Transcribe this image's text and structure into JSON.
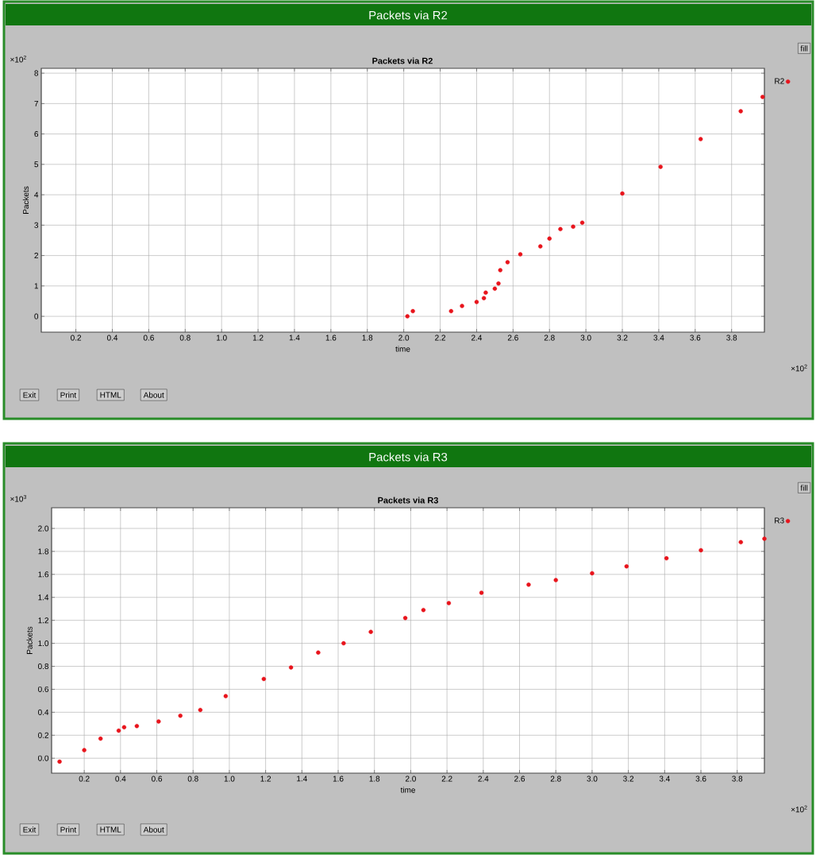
{
  "chart_data": [
    {
      "type": "scatter",
      "title": "Packets via R2",
      "subtitle": "Packets via R2",
      "xlabel": "time",
      "ylabel": "Packets",
      "x": [
        2.02,
        2.05,
        2.26,
        2.32,
        2.4,
        2.44,
        2.45,
        2.5,
        2.52,
        2.53,
        2.57,
        2.64,
        2.75,
        2.8,
        2.86,
        2.93,
        2.98,
        3.2,
        3.41,
        3.63,
        3.85,
        3.97
      ],
      "series": [
        {
          "name": "R2",
          "color": "#e8141c",
          "values": [
            0.0,
            0.17,
            0.17,
            0.34,
            0.47,
            0.6,
            0.78,
            0.91,
            1.08,
            1.52,
            1.78,
            2.04,
            2.3,
            2.56,
            2.87,
            2.95,
            3.08,
            4.04,
            4.92,
            5.83,
            6.75,
            7.22
          ]
        }
      ],
      "xlim": [
        0.01,
        3.98
      ],
      "ylim": [
        -0.52,
        8.16
      ],
      "xticks": [
        0.2,
        0.4,
        0.6,
        0.8,
        {
          "value": 1.0,
          "label": "1.0"
        },
        1.2,
        1.4,
        1.6,
        1.8,
        {
          "value": 2.0,
          "label": "2.0"
        },
        2.2,
        2.4,
        2.6,
        2.8,
        {
          "value": 3.0,
          "label": "3.0"
        },
        3.2,
        3.4,
        3.6,
        3.8
      ],
      "yticks": [
        0,
        1,
        2,
        3,
        4,
        5,
        6,
        7,
        8
      ],
      "grid": true,
      "legend": "top right",
      "annotations": [
        "×10$^{2}$",
        "×10$^{2}$",
        "fill",
        "Exit",
        "Print",
        "HTML",
        "About"
      ]
    },
    {
      "type": "scatter",
      "title": "Packets via R3",
      "subtitle": "Packets via R3",
      "xlabel": "time",
      "ylabel": "Packets",
      "x": [
        0.064,
        0.2,
        0.29,
        0.39,
        0.42,
        0.49,
        0.61,
        0.73,
        0.84,
        0.98,
        1.19,
        1.34,
        1.49,
        1.63,
        1.78,
        1.97,
        2.07,
        2.21,
        2.39,
        2.65,
        2.8,
        3.0,
        3.19,
        3.41,
        3.6,
        3.82,
        3.95
      ],
      "series": [
        {
          "name": "R3",
          "color": "#e8141c",
          "values": [
            -0.03,
            0.07,
            0.17,
            0.24,
            0.27,
            0.28,
            0.32,
            0.37,
            0.42,
            0.54,
            0.69,
            0.79,
            0.92,
            1.0,
            1.1,
            1.22,
            1.29,
            1.35,
            1.44,
            1.51,
            1.55,
            1.61,
            1.67,
            1.74,
            1.81,
            1.88,
            1.91
          ]
        }
      ],
      "xlim": [
        0.02,
        3.95
      ],
      "ylim": [
        -0.13,
        2.18
      ],
      "xticks": [
        0.2,
        0.4,
        0.6,
        0.8,
        {
          "value": 1.0,
          "label": "1.0"
        },
        1.2,
        1.4,
        1.6,
        1.8,
        {
          "value": 2.0,
          "label": "2.0"
        },
        2.2,
        2.4,
        2.6,
        2.8,
        {
          "value": 3.0,
          "label": "3.0"
        },
        3.2,
        3.4,
        3.6,
        3.8
      ],
      "yticks": [
        {
          "value": 0,
          "label": "0.0"
        },
        0.2,
        0.4,
        0.6,
        0.8,
        {
          "value": 1.0,
          "label": "1.0"
        },
        1.2,
        1.4,
        1.6,
        1.8,
        {
          "value": 2.0,
          "label": "2.0"
        }
      ],
      "grid": true,
      "legend": "top right",
      "annotations": [
        "×10$^{3}$",
        "×10$^{2}$",
        "fill",
        "Exit",
        "Print",
        "HTML",
        "About"
      ]
    }
  ]
}
